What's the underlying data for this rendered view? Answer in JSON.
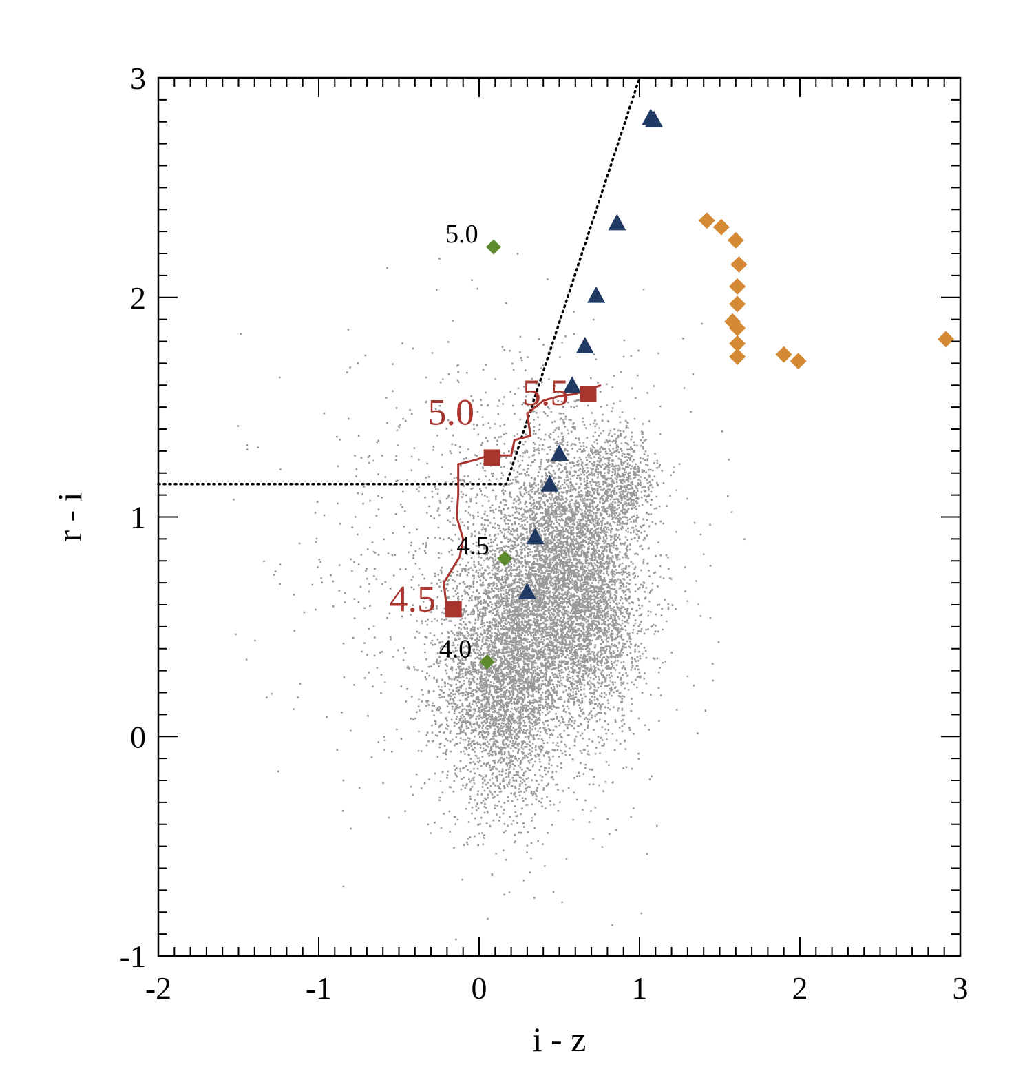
{
  "chart_data": {
    "type": "scatter",
    "xlabel": "i - z",
    "ylabel": "r - i",
    "xlim": [
      -2,
      3
    ],
    "ylim": [
      -1,
      3
    ],
    "xticks": [
      "-2",
      "-1",
      "0",
      "1",
      "2",
      "3"
    ],
    "yticks": [
      "-1",
      "0",
      "1",
      "2",
      "3"
    ],
    "xtick_values": [
      -2,
      -1,
      0,
      1,
      2,
      3
    ],
    "ytick_values": [
      -1,
      0,
      1,
      2,
      3
    ],
    "grid": false,
    "colors": {
      "background_points": "#999999",
      "track": "#a8352e",
      "triangles": "#213a63",
      "orange_diamonds": "#d48a35",
      "green_diamonds": "#5c8a2c",
      "dotted_line": "#000000"
    },
    "background_cloud": {
      "description_counts": "dense gray point cloud",
      "components": [
        {
          "cx": 0.15,
          "cy": 0.25,
          "sx": 0.19,
          "sy": 0.28,
          "n": 3600
        },
        {
          "cx": 0.48,
          "cy": 0.62,
          "sx": 0.22,
          "sy": 0.28,
          "n": 3000
        },
        {
          "cx": 0.55,
          "cy": 0.95,
          "sx": 0.18,
          "sy": 0.25,
          "n": 1600
        },
        {
          "cx": 0.88,
          "cy": 1.15,
          "sx": 0.12,
          "sy": 0.12,
          "n": 700
        },
        {
          "cx": 0.75,
          "cy": 0.55,
          "sx": 0.15,
          "sy": 0.25,
          "n": 1200
        },
        {
          "cx": 0.3,
          "cy": 0.7,
          "sx": 0.45,
          "sy": 0.5,
          "n": 1300
        },
        {
          "cx": -0.2,
          "cy": 0.8,
          "sx": 0.5,
          "sy": 0.5,
          "n": 400
        }
      ]
    },
    "track_line": {
      "points": [
        [
          -0.2,
          0.57
        ],
        [
          -0.22,
          0.7
        ],
        [
          -0.12,
          0.82
        ],
        [
          -0.1,
          0.9
        ],
        [
          -0.14,
          1.0
        ],
        [
          -0.13,
          1.1
        ],
        [
          -0.13,
          1.24
        ],
        [
          -0.02,
          1.26
        ],
        [
          0.06,
          1.28
        ],
        [
          0.2,
          1.28
        ],
        [
          0.22,
          1.35
        ],
        [
          0.32,
          1.37
        ],
        [
          0.3,
          1.47
        ],
        [
          0.4,
          1.53
        ],
        [
          0.5,
          1.55
        ],
        [
          0.6,
          1.56
        ],
        [
          0.76,
          1.6
        ]
      ]
    },
    "track_markers": [
      {
        "x": -0.16,
        "y": 0.58,
        "label": "4.5",
        "label_x": -0.56,
        "label_y": 0.57
      },
      {
        "x": 0.08,
        "y": 1.27,
        "label": "5.0",
        "label_x": -0.32,
        "label_y": 1.42
      },
      {
        "x": 0.68,
        "y": 1.56,
        "label": "5.5",
        "label_x": 0.27,
        "label_y": 1.51
      }
    ],
    "green_diamonds": [
      {
        "x": 0.05,
        "y": 0.34,
        "label": "4.0",
        "label_x": -0.25,
        "label_y": 0.36
      },
      {
        "x": 0.16,
        "y": 0.81,
        "label": "4.5",
        "label_x": -0.14,
        "label_y": 0.83
      },
      {
        "x": 0.09,
        "y": 2.23,
        "label": "5.0",
        "label_x": -0.21,
        "label_y": 2.25
      }
    ],
    "triangles": [
      {
        "x": 1.07,
        "y": 2.82
      },
      {
        "x": 1.09,
        "y": 2.81
      },
      {
        "x": 0.86,
        "y": 2.34
      },
      {
        "x": 0.73,
        "y": 2.01
      },
      {
        "x": 0.66,
        "y": 1.78
      },
      {
        "x": 0.58,
        "y": 1.6
      },
      {
        "x": 0.5,
        "y": 1.29
      },
      {
        "x": 0.44,
        "y": 1.15
      },
      {
        "x": 0.35,
        "y": 0.91
      },
      {
        "x": 0.3,
        "y": 0.66
      }
    ],
    "orange_diamonds": [
      {
        "x": 1.42,
        "y": 2.35
      },
      {
        "x": 1.51,
        "y": 2.32
      },
      {
        "x": 1.6,
        "y": 2.26
      },
      {
        "x": 1.62,
        "y": 2.15
      },
      {
        "x": 1.61,
        "y": 2.05
      },
      {
        "x": 1.61,
        "y": 1.97
      },
      {
        "x": 1.58,
        "y": 1.89
      },
      {
        "x": 1.61,
        "y": 1.86
      },
      {
        "x": 1.61,
        "y": 1.79
      },
      {
        "x": 1.61,
        "y": 1.73
      },
      {
        "x": 1.9,
        "y": 1.74
      },
      {
        "x": 1.99,
        "y": 1.71
      },
      {
        "x": 2.91,
        "y": 1.81
      }
    ],
    "dotted_boundary": {
      "points": [
        [
          -2,
          1.15
        ],
        [
          0.17,
          1.15
        ],
        [
          1.0,
          3.0
        ]
      ]
    }
  }
}
